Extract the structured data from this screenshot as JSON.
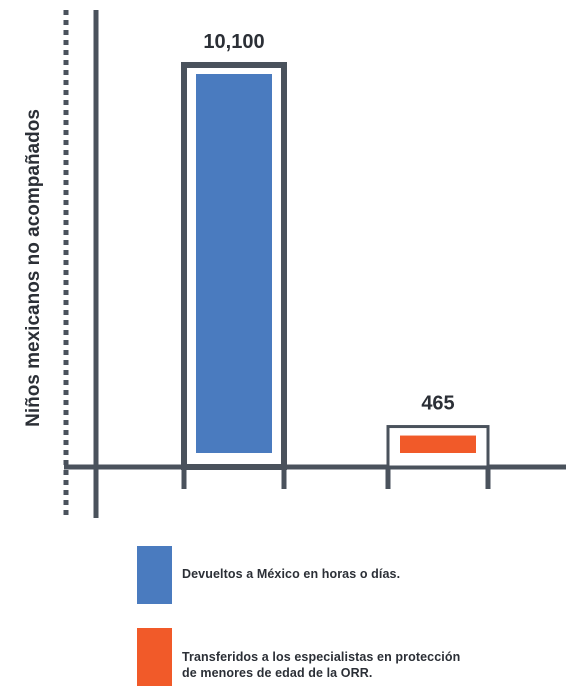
{
  "chart_data": {
    "type": "bar",
    "title": "",
    "xlabel": "",
    "ylabel": "Niños mexicanos no acompañados",
    "categories": [
      "Devueltos a México en horas o días.",
      "Transferidos a los especialistas en protección de menores de edad de la ORR."
    ],
    "values": [
      10100,
      465
    ],
    "value_labels": [
      "10,100",
      "465"
    ],
    "colors": [
      "#4a7bbf",
      "#f15a29"
    ],
    "ylim": [
      0,
      11000
    ],
    "grid": false,
    "legend": {
      "placement": "bottom",
      "items": [
        {
          "label_line1": "Devueltos a México en horas o días.",
          "label_line2": "",
          "color": "#4a7bbf"
        },
        {
          "label_line1": "Transferidos a los especialistas en protección",
          "label_line2": "de menores de edad de la ORR.",
          "color": "#f15a29"
        }
      ]
    }
  },
  "theme": {
    "axis_color": "#4a525c",
    "dotted_color": "#4a525c",
    "frame_color": "#4a525c",
    "text_color": "#2b2f36"
  }
}
